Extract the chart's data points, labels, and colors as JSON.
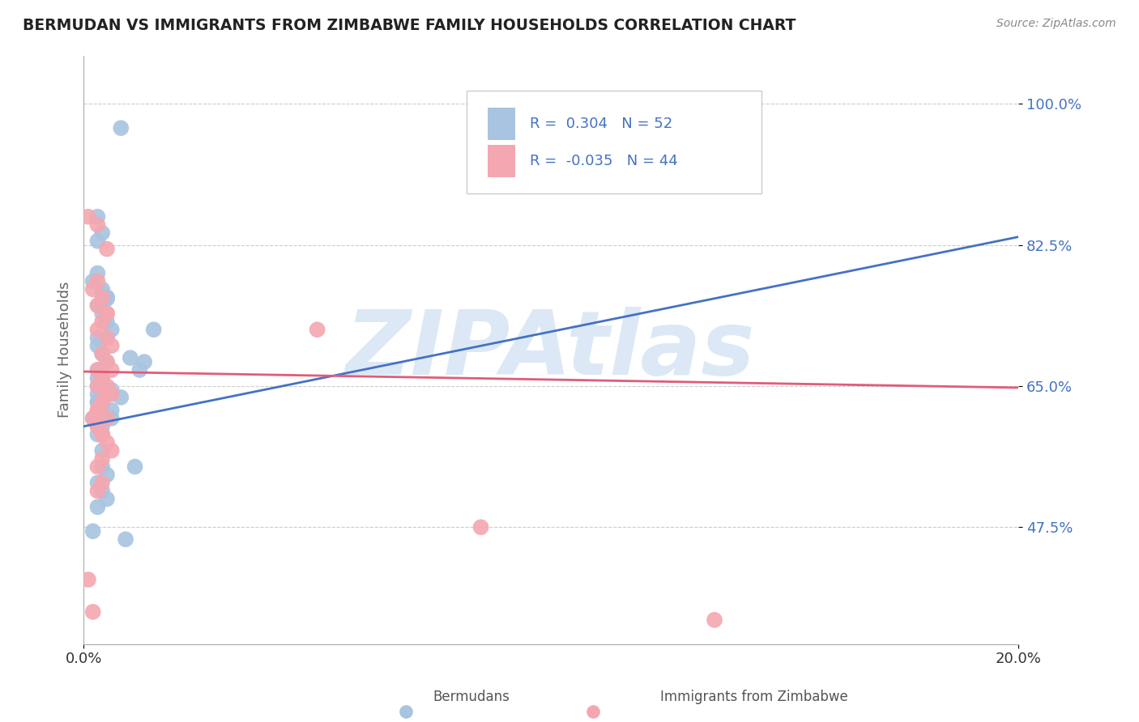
{
  "title": "BERMUDAN VS IMMIGRANTS FROM ZIMBABWE FAMILY HOUSEHOLDS CORRELATION CHART",
  "source_text": "Source: ZipAtlas.com",
  "xlabel_bermuda": "Bermudans",
  "xlabel_zimbabwe": "Immigrants from Zimbabwe",
  "ylabel": "Family Households",
  "xlim": [
    0.0,
    0.2
  ],
  "ylim": [
    0.33,
    1.06
  ],
  "ytick_labels": [
    "47.5%",
    "65.0%",
    "82.5%",
    "100.0%"
  ],
  "ytick_vals": [
    0.475,
    0.65,
    0.825,
    1.0
  ],
  "legend_R_bermuda": "0.304",
  "legend_N_bermuda": "52",
  "legend_R_zimbabwe": "-0.035",
  "legend_N_zimbabwe": "44",
  "color_bermuda": "#a8c4e0",
  "color_zimbabwe": "#f4a7b0",
  "color_trend_bermuda": "#4472c4",
  "color_trend_zimbabwe": "#e05c7a",
  "color_axis_labels": "#4472c4",
  "color_legend_text": "#4472c4",
  "color_legend_N": "#333333",
  "watermark": "ZIPAtlas",
  "watermark_color": "#dce8f5",
  "background_color": "#ffffff",
  "trend_bermuda_x0": 0.0,
  "trend_bermuda_y0": 0.6,
  "trend_bermuda_x1": 0.2,
  "trend_bermuda_y1": 0.835,
  "trend_zimbabwe_x0": 0.0,
  "trend_zimbabwe_y0": 0.668,
  "trend_zimbabwe_x1": 0.2,
  "trend_zimbabwe_y1": 0.648,
  "bermuda_x": [
    0.008,
    0.003,
    0.004,
    0.003,
    0.002,
    0.003,
    0.004,
    0.005,
    0.003,
    0.004,
    0.005,
    0.006,
    0.003,
    0.004,
    0.005,
    0.003,
    0.004,
    0.005,
    0.003,
    0.004,
    0.003,
    0.005,
    0.006,
    0.004,
    0.003,
    0.004,
    0.002,
    0.005,
    0.003,
    0.004,
    0.006,
    0.003,
    0.004,
    0.005,
    0.003,
    0.004,
    0.006,
    0.008,
    0.004,
    0.005,
    0.003,
    0.004,
    0.005,
    0.003,
    0.01,
    0.012,
    0.015,
    0.002,
    0.003,
    0.013,
    0.011,
    0.009
  ],
  "bermuda_y": [
    0.97,
    0.86,
    0.84,
    0.83,
    0.78,
    0.79,
    0.77,
    0.76,
    0.75,
    0.74,
    0.73,
    0.72,
    0.71,
    0.755,
    0.71,
    0.7,
    0.69,
    0.68,
    0.67,
    0.66,
    0.65,
    0.64,
    0.62,
    0.765,
    0.63,
    0.62,
    0.61,
    0.76,
    0.59,
    0.6,
    0.61,
    0.64,
    0.57,
    0.758,
    0.66,
    0.66,
    0.645,
    0.636,
    0.55,
    0.54,
    0.53,
    0.52,
    0.51,
    0.5,
    0.685,
    0.67,
    0.72,
    0.47,
    0.63,
    0.68,
    0.55,
    0.46
  ],
  "zimbabwe_x": [
    0.001,
    0.003,
    0.005,
    0.003,
    0.002,
    0.004,
    0.003,
    0.005,
    0.004,
    0.003,
    0.005,
    0.006,
    0.004,
    0.005,
    0.003,
    0.004,
    0.005,
    0.006,
    0.004,
    0.003,
    0.005,
    0.003,
    0.004,
    0.005,
    0.006,
    0.004,
    0.003,
    0.005,
    0.004,
    0.003,
    0.002,
    0.003,
    0.004,
    0.005,
    0.006,
    0.004,
    0.003,
    0.05,
    0.004,
    0.003,
    0.001,
    0.002,
    0.135,
    0.085
  ],
  "zimbabwe_y": [
    0.86,
    0.85,
    0.82,
    0.78,
    0.77,
    0.76,
    0.75,
    0.74,
    0.73,
    0.72,
    0.71,
    0.7,
    0.69,
    0.68,
    0.67,
    0.66,
    0.65,
    0.64,
    0.63,
    0.62,
    0.61,
    0.6,
    0.59,
    0.74,
    0.67,
    0.66,
    0.65,
    0.64,
    0.63,
    0.62,
    0.61,
    0.6,
    0.59,
    0.58,
    0.57,
    0.56,
    0.55,
    0.72,
    0.53,
    0.52,
    0.41,
    0.37,
    0.36,
    0.475
  ]
}
